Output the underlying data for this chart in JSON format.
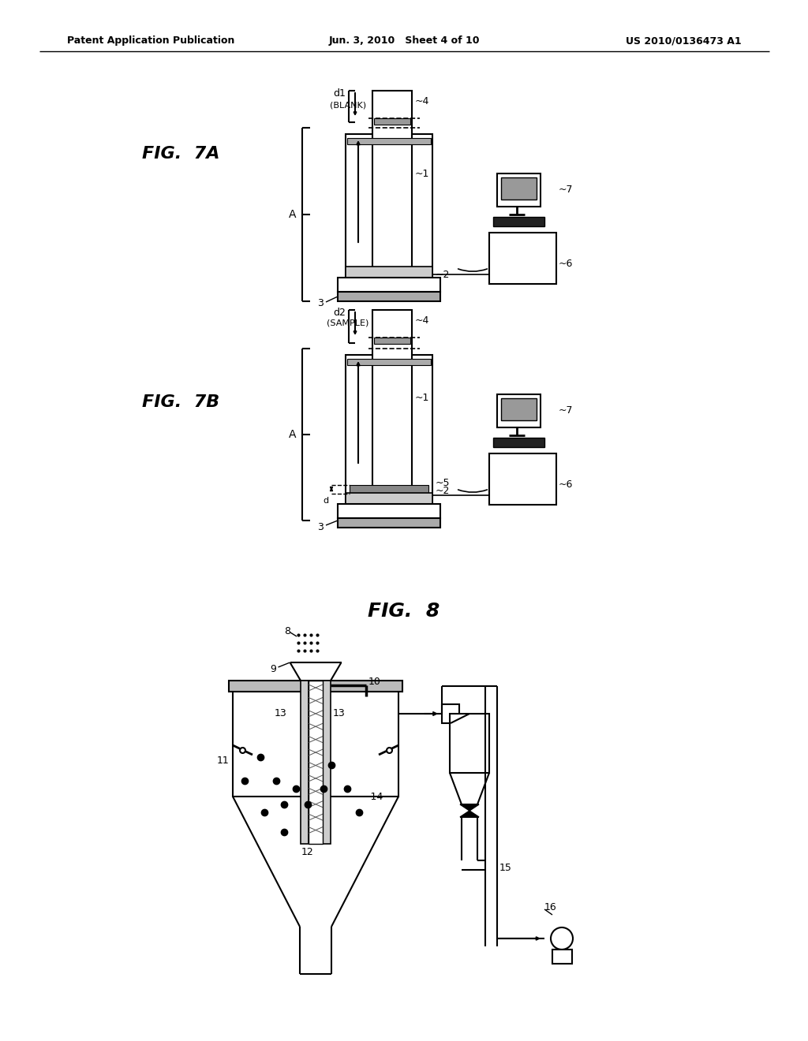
{
  "bg_color": "#ffffff",
  "header_left": "Patent Application Publication",
  "header_mid": "Jun. 3, 2010   Sheet 4 of 10",
  "header_right": "US 2010/0136473 A1",
  "fig7a_label": "FIG.  7A",
  "fig7b_label": "FIG.  7B",
  "fig8_label": "FIG.  8"
}
